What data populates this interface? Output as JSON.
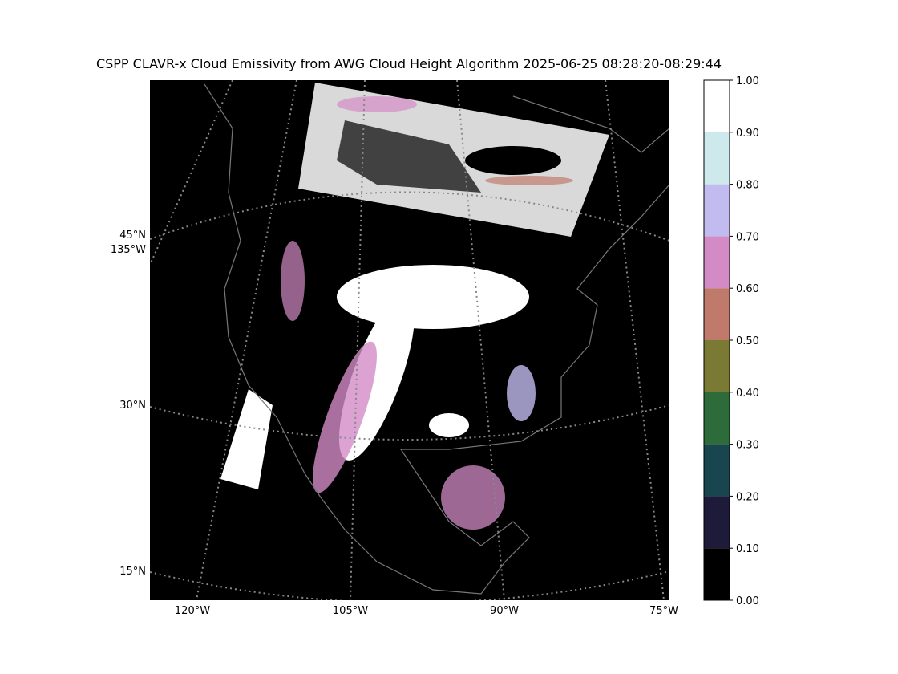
{
  "map": {
    "title": "CSPP CLAVR-x Cloud Emissivity from AWG Cloud Height Algorithm 2025-06-25 08:28:20-08:29:44",
    "lat_labels": [
      "45°N",
      "30°N",
      "15°N"
    ],
    "lon_labels": [
      "135°W",
      "120°W",
      "105°W",
      "90°W",
      "75°W"
    ],
    "colorbar": {
      "lim": [
        0,
        1
      ],
      "ticks": [
        {
          "value": 0,
          "label": "0.00"
        },
        {
          "value": 0.1,
          "label": "0.10"
        },
        {
          "value": 0.2,
          "label": "0.20"
        },
        {
          "value": 0.3,
          "label": "0.30"
        },
        {
          "value": 0.4,
          "label": "0.40"
        },
        {
          "value": 0.5,
          "label": "0.50"
        },
        {
          "value": 0.6,
          "label": "0.60"
        },
        {
          "value": 0.7,
          "label": "0.70"
        },
        {
          "value": 0.8,
          "label": "0.80"
        },
        {
          "value": 0.9,
          "label": "0.90"
        },
        {
          "value": 1,
          "label": "1.00"
        }
      ],
      "colors": [
        "#000000",
        "#1e1a3a",
        "#18454e",
        "#2d6b3a",
        "#7a7a35",
        "#c07a6c",
        "#d38bc6",
        "#c2bbf0",
        "#cde9ec",
        "#ffffff"
      ]
    }
  }
}
